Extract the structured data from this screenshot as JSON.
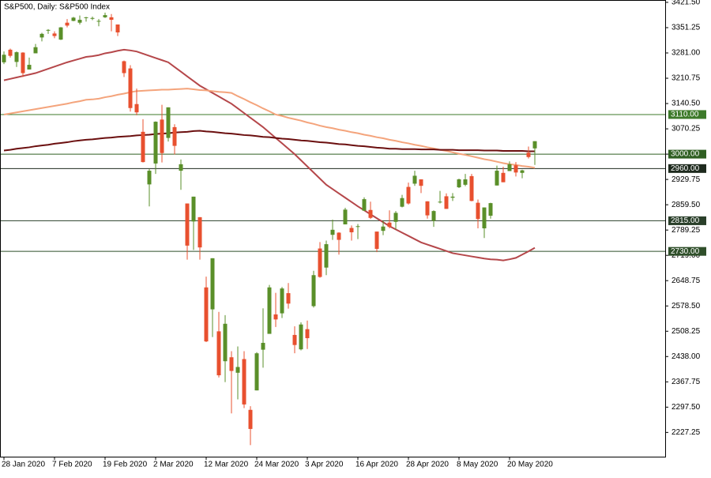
{
  "chart_data": {
    "type": "candlestick",
    "title": "S&P500, Daily:  S&P500 Index",
    "categories": [
      "28 Jan 2020",
      null,
      null,
      null,
      null,
      null,
      null,
      null,
      "7 Feb 2020",
      null,
      null,
      null,
      null,
      null,
      null,
      null,
      "19 Feb 2020",
      null,
      null,
      null,
      null,
      null,
      null,
      null,
      "2 Mar 2020",
      null,
      null,
      null,
      null,
      null,
      null,
      null,
      "12 Mar 2020",
      null,
      null,
      null,
      null,
      null,
      null,
      null,
      "24 Mar 2020",
      null,
      null,
      null,
      null,
      null,
      null,
      null,
      "3 Apr 2020",
      null,
      null,
      null,
      null,
      null,
      null,
      null,
      "16 Apr 2020",
      null,
      null,
      null,
      null,
      null,
      null,
      null,
      "28 Apr 2020",
      null,
      null,
      null,
      null,
      null,
      null,
      null,
      "8 May 2020",
      null,
      null,
      null,
      null,
      null,
      null,
      null,
      "20 May 2020",
      null,
      null,
      null,
      null
    ],
    "open": [
      3255,
      3290,
      3256,
      3282,
      3235,
      3280,
      3324,
      3344,
      3335,
      3318,
      3365,
      3370,
      3365,
      3378,
      3376,
      3369,
      3380,
      3380,
      3360,
      3258,
      3238,
      3139,
      3062,
      2916,
      2974,
      3096,
      3045,
      3075,
      2954,
      2863,
      2813,
      2825,
      2630,
      2569,
      2508,
      2425,
      2436,
      2393,
      2431,
      2290,
      2344,
      2457,
      2501,
      2555,
      2558,
      2614,
      2498,
      2458,
      2514,
      2578,
      2738,
      2685,
      2776,
      2782,
      2805,
      2795,
      2799,
      2843,
      2845,
      2785,
      2787,
      2810,
      2812,
      2854,
      2909,
      2918,
      2930,
      2869,
      2815,
      2868,
      2883,
      2879,
      2908,
      2915,
      2939,
      2865,
      2794,
      2829,
      2913,
      2948,
      2953,
      2969,
      2948,
      3004,
      3016
    ],
    "high": [
      3285,
      3293,
      3285,
      3283,
      3268,
      3306,
      3337,
      3347,
      3341,
      3353,
      3375,
      3381,
      3385,
      3381,
      3382,
      3375,
      3393,
      3389,
      3360,
      3260,
      3247,
      3182,
      3097,
      2959,
      3091,
      3137,
      3130,
      3083,
      2985,
      2863,
      2882,
      2825,
      2660,
      2711,
      2562,
      2553,
      2453,
      2466,
      2453,
      2300,
      2450,
      2572,
      2637,
      2615,
      2631,
      2642,
      2522,
      2533,
      2538,
      2676,
      2756,
      2760,
      2818,
      2783,
      2851,
      2802,
      2806,
      2880,
      2868,
      2785,
      2815,
      2844,
      2842,
      2887,
      2921,
      2954,
      2930,
      2869,
      2844,
      2898,
      2891,
      2892,
      2932,
      2945,
      2945,
      2874,
      2852,
      2865,
      2968,
      2965,
      2980,
      2978,
      2957,
      3021,
      3036
    ],
    "low": [
      3250,
      3268,
      3242,
      3214,
      3235,
      3280,
      3313,
      3334,
      3322,
      3317,
      3352,
      3369,
      3360,
      3368,
      3372,
      3355,
      3378,
      3341,
      3328,
      3214,
      3118,
      3108,
      2977,
      2855,
      2945,
      2977,
      3035,
      2999,
      2901,
      2707,
      2734,
      2707,
      2478,
      2492,
      2380,
      2367,
      2280,
      2319,
      2295,
      2192,
      2344,
      2407,
      2501,
      2520,
      2545,
      2571,
      2447,
      2455,
      2459,
      2574,
      2657,
      2664,
      2762,
      2721,
      2805,
      2760,
      2764,
      2842,
      2820,
      2728,
      2775,
      2794,
      2791,
      2852,
      2860,
      2912,
      2892,
      2821,
      2798,
      2863,
      2848,
      2870,
      2906,
      2911,
      2869,
      2794,
      2767,
      2821,
      2913,
      2922,
      2953,
      2938,
      2933,
      2988,
      2970
    ],
    "close": [
      3276,
      3273,
      3283,
      3225,
      3248,
      3297,
      3334,
      3345,
      3328,
      3352,
      3357,
      3379,
      3373,
      3380,
      3378,
      3370,
      3386,
      3373,
      3338,
      3225,
      3128,
      3116,
      2978,
      2954,
      3090,
      3003,
      3130,
      3023,
      2972,
      2746,
      2882,
      2741,
      2480,
      2711,
      2386,
      2529,
      2398,
      2409,
      2305,
      2237,
      2447,
      2476,
      2630,
      2541,
      2627,
      2585,
      2470,
      2527,
      2489,
      2664,
      2659,
      2750,
      2790,
      2762,
      2846,
      2783,
      2800,
      2875,
      2823,
      2737,
      2799,
      2798,
      2837,
      2878,
      2863,
      2940,
      2912,
      2830,
      2842,
      2868,
      2848,
      2882,
      2930,
      2930,
      2870,
      2820,
      2852,
      2864,
      2954,
      2922,
      2972,
      2949,
      2955,
      2992,
      3036
    ],
    "up_color": "#5a8f29",
    "down_color": "#e8502f",
    "lines": [
      {
        "color": "#b5474a",
        "values": [
          3205,
          3209,
          3213,
          3217,
          3221,
          3225,
          3231,
          3237,
          3243,
          3249,
          3255,
          3260,
          3265,
          3270,
          3272,
          3275,
          3280,
          3283,
          3287,
          3290,
          3288,
          3285,
          3279,
          3273,
          3267,
          3261,
          3255,
          3242,
          3229,
          3216,
          3203,
          3190,
          3180,
          3170,
          3160,
          3150,
          3140,
          3127,
          3114,
          3101,
          3088,
          3075,
          3060,
          3045,
          3030,
          3015,
          3000,
          2983,
          2966,
          2949,
          2932,
          2915,
          2903,
          2891,
          2879,
          2867,
          2855,
          2844,
          2833,
          2822,
          2811,
          2800,
          2791,
          2782,
          2773,
          2764,
          2755,
          2749,
          2743,
          2737,
          2731,
          2725,
          2722,
          2719,
          2716,
          2713,
          2710,
          2708,
          2707,
          2705,
          2708,
          2712,
          2721,
          2730,
          2740
        ]
      },
      {
        "color": "#f4a47c",
        "values": [
          3110,
          3113,
          3116,
          3119,
          3122,
          3125,
          3128,
          3131,
          3134,
          3137,
          3140,
          3144,
          3147,
          3151,
          3152,
          3154,
          3158,
          3161,
          3165,
          3168,
          3172,
          3175,
          3176,
          3177,
          3178,
          3179,
          3179,
          3180,
          3181,
          3182,
          3180,
          3178,
          3177,
          3175,
          3173,
          3172,
          3170,
          3161,
          3153,
          3144,
          3136,
          3127,
          3119,
          3110,
          3106,
          3101,
          3097,
          3093,
          3088,
          3084,
          3079,
          3075,
          3072,
          3068,
          3065,
          3061,
          3058,
          3054,
          3051,
          3047,
          3044,
          3040,
          3037,
          3033,
          3030,
          3026,
          3023,
          3019,
          3016,
          3012,
          3009,
          3005,
          3001,
          2998,
          2994,
          2990,
          2986,
          2983,
          2979,
          2975,
          2972,
          2970,
          2967,
          2965,
          2962
        ]
      },
      {
        "color": "#6b0f0f",
        "values": [
          3010,
          3012,
          3015,
          3017,
          3019,
          3022,
          3024,
          3026,
          3029,
          3031,
          3033,
          3036,
          3038,
          3040,
          3041,
          3043,
          3045,
          3046,
          3048,
          3049,
          3050,
          3052,
          3053,
          3054,
          3056,
          3057,
          3058,
          3060,
          3061,
          3062,
          3064,
          3065,
          3063,
          3062,
          3060,
          3058,
          3057,
          3055,
          3053,
          3052,
          3050,
          3048,
          3047,
          3045,
          3043,
          3042,
          3040,
          3038,
          3037,
          3035,
          3033,
          3032,
          3030,
          3028,
          3027,
          3025,
          3023,
          3022,
          3020,
          3018,
          3017,
          3015,
          3015,
          3014,
          3014,
          3014,
          3013,
          3013,
          3013,
          3012,
          3012,
          3012,
          3011,
          3011,
          3011,
          3011,
          3010,
          3010,
          3010,
          3009,
          3009,
          3009,
          3009,
          3008,
          3008
        ]
      }
    ],
    "levels": [
      {
        "value": 3110,
        "label": "3110.00",
        "color": "#3d7a2a"
      },
      {
        "value": 3000,
        "label": "3000.00",
        "color": "#2f5f22"
      },
      {
        "value": 2960,
        "label": "2960.00",
        "color": "#1e2a1e"
      },
      {
        "value": 2815,
        "label": "2815.00",
        "color": "#2a3f2a"
      },
      {
        "value": 2730,
        "label": "2730.00",
        "color": "#2f4f2a"
      }
    ],
    "ylim": [
      2160,
      3428
    ],
    "yticks": [
      {
        "value": 3421.5,
        "label": "3421.50"
      },
      3351.25,
      {
        "value": 3281,
        "label": "3281.00"
      },
      3210.75,
      {
        "value": 3140.5,
        "label": "3140.50"
      },
      3070.25,
      {
        "value": 3000,
        "label": "3000.00"
      },
      2929.75,
      {
        "value": 2859.5,
        "label": "2859.50"
      },
      2789.25,
      {
        "value": 2719,
        "label": "2719.00"
      },
      2648.75,
      {
        "value": 2578.5,
        "label": "2578.50"
      },
      2508.25,
      {
        "value": 2438,
        "label": "2438.00"
      },
      2367.75,
      {
        "value": 2297.5,
        "label": "2297.50"
      },
      2227.25
    ]
  }
}
